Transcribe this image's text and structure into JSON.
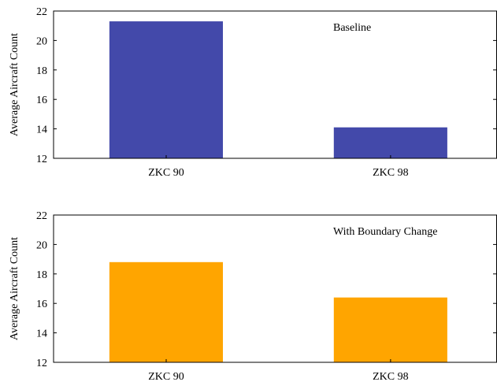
{
  "chart_data": [
    {
      "type": "bar",
      "categories": [
        "ZKC 90",
        "ZKC 98"
      ],
      "values": [
        21.3,
        14.1
      ],
      "annotation": "Baseline",
      "ylabel": "Average Aircraft Count",
      "ylim": [
        12,
        22
      ],
      "yticks": [
        12,
        14,
        16,
        18,
        20,
        22
      ],
      "color": "#4349aa",
      "grid": false
    },
    {
      "type": "bar",
      "categories": [
        "ZKC 90",
        "ZKC 98"
      ],
      "values": [
        18.8,
        16.4
      ],
      "annotation": "With Boundary Change",
      "ylabel": "Average Aircraft Count",
      "ylim": [
        12,
        22
      ],
      "yticks": [
        12,
        14,
        16,
        18,
        20,
        22
      ],
      "color": "#ffa500",
      "grid": false
    }
  ]
}
